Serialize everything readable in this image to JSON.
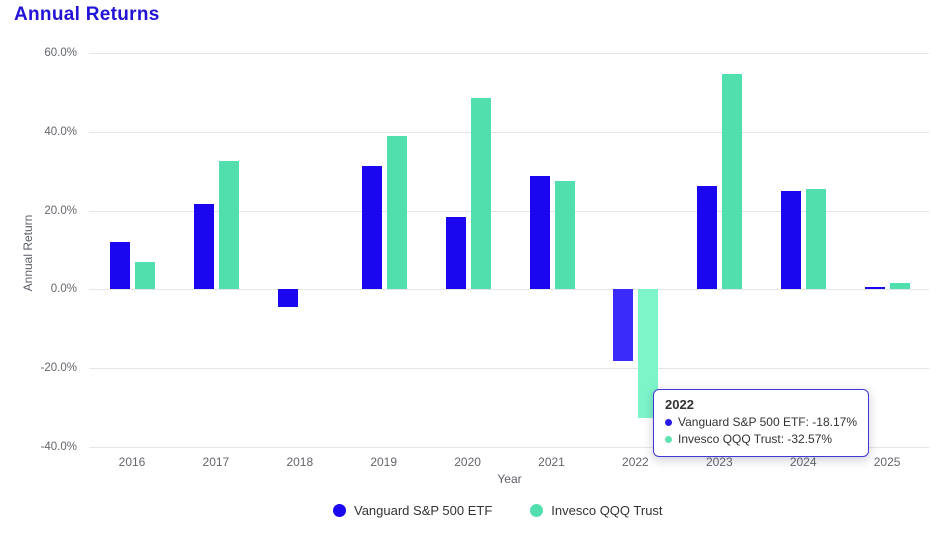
{
  "page_title": "Annual Returns",
  "colors": {
    "title": "#2213d6",
    "series1": "#1a07f0",
    "series1_highlight": "#3a2bfa",
    "series2": "#52dfae",
    "series2_highlight": "#7df5c9",
    "gridline": "#e6e6e6",
    "tick_text": "#63666c",
    "tooltip_border": "#4038d6"
  },
  "chart_data": {
    "type": "bar",
    "title": "Annual Returns",
    "xlabel": "Year",
    "ylabel": "Annual Return",
    "categories": [
      "2016",
      "2017",
      "2018",
      "2019",
      "2020",
      "2021",
      "2022",
      "2023",
      "2024",
      "2025"
    ],
    "series": [
      {
        "name": "Vanguard S&P 500 ETF",
        "color": "#1a07f0",
        "highlight_color": "#3a2bfa",
        "values": [
          11.9,
          21.7,
          -4.6,
          31.4,
          18.4,
          28.7,
          -18.17,
          26.2,
          25.0,
          0.6
        ]
      },
      {
        "name": "Invesco QQQ Trust",
        "color": "#52dfae",
        "highlight_color": "#7df5c9",
        "values": [
          7.0,
          32.5,
          0.0,
          39.0,
          48.6,
          27.4,
          -32.57,
          54.8,
          25.4,
          1.7
        ]
      }
    ],
    "ylim": [
      -40,
      60
    ],
    "ytick_labels": [
      "60.0%",
      "40.0%",
      "20.0%",
      "0.0%",
      "-20.0%",
      "-40.0%"
    ],
    "grid": true,
    "legend_position": "bottom",
    "highlighted_category": "2022"
  },
  "tooltip": {
    "title": "2022",
    "rows": [
      {
        "series": "Vanguard S&P 500 ETF",
        "text": "Vanguard S&P 500 ETF: -18.17%",
        "dot_color": "#2a1ae8"
      },
      {
        "series": "Invesco QQQ Trust",
        "text": "Invesco QQQ Trust: -32.57%",
        "dot_color": "#5fe3b2"
      }
    ]
  }
}
